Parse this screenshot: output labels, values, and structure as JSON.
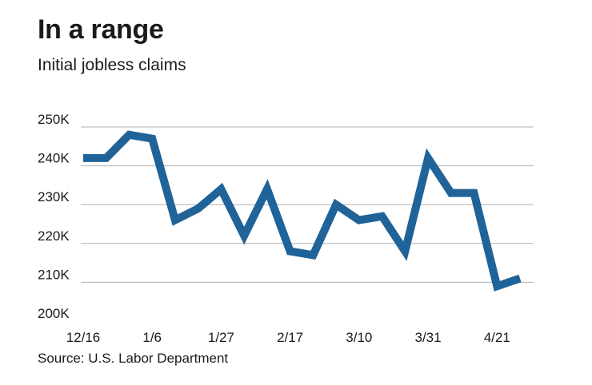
{
  "header": {
    "title": "In a range",
    "subtitle": "Initial jobless claims"
  },
  "footer": {
    "source": "Source: U.S. Labor Department"
  },
  "colors": {
    "line": "#1f6399",
    "grid": "#b0b0b0",
    "text": "#1a1a1a"
  },
  "chart_data": {
    "type": "line",
    "title": "In a range",
    "subtitle": "Initial jobless claims",
    "xlabel": "",
    "ylabel": "",
    "x": [
      "12/16",
      "12/23",
      "12/30",
      "1/6",
      "1/13",
      "1/20",
      "1/27",
      "2/3",
      "2/10",
      "2/17",
      "2/24",
      "3/3",
      "3/10",
      "3/17",
      "3/24",
      "3/31",
      "4/7",
      "4/14",
      "4/21",
      "4/28"
    ],
    "x_tick_labels": [
      "12/16",
      "1/6",
      "1/27",
      "2/17",
      "3/10",
      "3/31",
      "4/21"
    ],
    "series": [
      {
        "values": [
          242000,
          242000,
          248000,
          247000,
          226000,
          229000,
          234000,
          222000,
          234000,
          218000,
          217000,
          230000,
          226000,
          227000,
          218000,
          242000,
          233000,
          233000,
          209000,
          211000
        ]
      }
    ],
    "y_ticks": [
      200000,
      210000,
      220000,
      230000,
      240000,
      250000
    ],
    "y_tick_labels": [
      "200K",
      "210K",
      "220K",
      "230K",
      "240K",
      "250K"
    ],
    "ylim": [
      200000,
      250000
    ],
    "grid": true,
    "legend": "none",
    "source": "Source: U.S. Labor Department"
  }
}
